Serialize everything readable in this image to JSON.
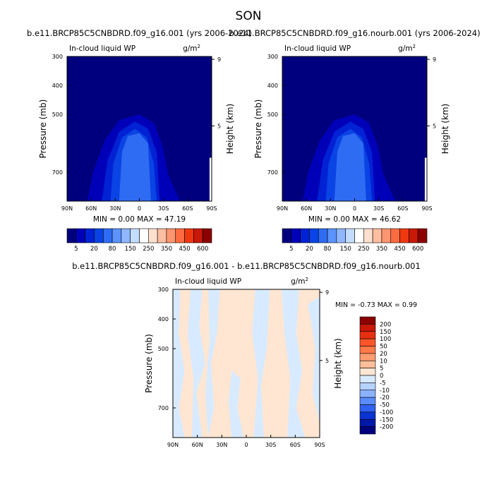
{
  "page": {
    "title": "SON"
  },
  "chart_data": [
    {
      "type": "heatmap",
      "title": "b.e11.BRCP85C5CNBDRD.f09_g16.001 (yrs 2006-2024)",
      "left_label": "In-cloud liquid WP",
      "units": {
        "base": "g/m",
        "exp": "2"
      },
      "ylabel": "Pressure (mb)",
      "ylabel_right": "Height (km)",
      "xticks": [
        "90N",
        "60N",
        "30N",
        "0",
        "30S",
        "60S",
        "90S"
      ],
      "yticks": [
        "300",
        "400",
        "500",
        "700"
      ],
      "yticks_right": [
        "9",
        "5"
      ],
      "min_max": "MIN =   0.00  MAX =  47.19",
      "colorbar": {
        "labels": [
          "5",
          "20",
          "80",
          "150",
          "250",
          "350",
          "450",
          "600"
        ],
        "colors": [
          "#00007f",
          "#0000b8",
          "#0022d4",
          "#0a44e4",
          "#2f6cf4",
          "#5b93ff",
          "#8fb6ff",
          "#c3dcff",
          "#ffffff",
          "#ffe0cf",
          "#ffbea0",
          "#ff9670",
          "#ff6b40",
          "#f03810",
          "#c81808",
          "#8b0000"
        ]
      }
    },
    {
      "type": "heatmap",
      "title": "b.e11.BRCP85C5CNBDRD.f09_g16.nourb.001 (yrs 2006-2024)",
      "left_label": "In-cloud liquid WP",
      "units": {
        "base": "g/m",
        "exp": "2"
      },
      "ylabel": "Pressure (mb)",
      "ylabel_right": "Height (km)",
      "xticks": [
        "90N",
        "60N",
        "30N",
        "0",
        "30S",
        "60S",
        "90S"
      ],
      "yticks": [
        "300",
        "400",
        "500",
        "700"
      ],
      "yticks_right": [
        "9",
        "5"
      ],
      "min_max": "MIN =   0.00  MAX =  46.62",
      "colorbar": {
        "labels": [
          "5",
          "20",
          "80",
          "150",
          "250",
          "350",
          "450",
          "600"
        ],
        "colors": [
          "#00007f",
          "#0000b8",
          "#0022d4",
          "#0a44e4",
          "#2f6cf4",
          "#5b93ff",
          "#8fb6ff",
          "#c3dcff",
          "#ffffff",
          "#ffe0cf",
          "#ffbea0",
          "#ff9670",
          "#ff6b40",
          "#f03810",
          "#c81808",
          "#8b0000"
        ]
      }
    },
    {
      "type": "heatmap",
      "title": "b.e11.BRCP85C5CNBDRD.f09_g16.001 - b.e11.BRCP85C5CNBDRD.f09_g16.nourb.001",
      "left_label": "In-cloud liquid WP",
      "units": {
        "base": "g/m",
        "exp": "2"
      },
      "ylabel": "Pressure (mb)",
      "ylabel_right": "Height (km)",
      "xticks": [
        "90N",
        "60N",
        "30N",
        "0",
        "30S",
        "60S",
        "90S"
      ],
      "yticks": [
        "300",
        "400",
        "500",
        "700"
      ],
      "yticks_right": [
        "9",
        "5"
      ],
      "min_max": "MIN =  -0.73  MAX =   0.99",
      "colorbar": {
        "labels": [
          "200",
          "150",
          "100",
          "50",
          "20",
          "10",
          "5",
          "0",
          "-5",
          "-10",
          "-20",
          "-50",
          "-100",
          "-150",
          "-200"
        ],
        "colors": [
          "#8b0000",
          "#c81808",
          "#e63010",
          "#ff5528",
          "#ff7a48",
          "#ff9c70",
          "#ffbe9a",
          "#fee6d2",
          "#d8eaff",
          "#b6d2ff",
          "#8cb2ff",
          "#5a8cff",
          "#2f62f0",
          "#0a34d2",
          "#0018a8",
          "#00007f"
        ]
      }
    }
  ]
}
